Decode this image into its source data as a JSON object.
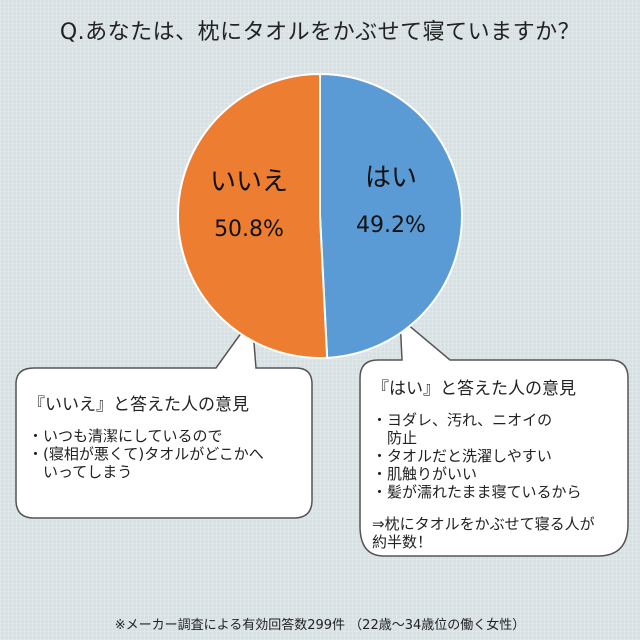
{
  "title": "Q.あなたは、枕にタオルをかぶせて寝ていますか？",
  "chart_data": {
    "type": "pie",
    "slices": [
      {
        "label": "はい",
        "value": 49.2,
        "value_label": "49.2%",
        "color": "#5b9bd5"
      },
      {
        "label": "いいえ",
        "value": 50.8,
        "value_label": "50.8%",
        "color": "#ed7d31"
      }
    ]
  },
  "left_box": {
    "heading": "『いいえ』と答えた人の意見",
    "items": [
      "・いつも清潔にしているので",
      "・(寝相が悪くて)タオルがどこかへ\n　いってしまう"
    ]
  },
  "right_box": {
    "heading": "『はい』と答えた人の意見",
    "items": [
      "・ヨダレ、汚れ、ニオイの\n　防止",
      "・タオルだと洗濯しやすい",
      "・肌触りがいい",
      "・髪が濡れたまま寝ているから"
    ],
    "conclusion": "⇒枕にタオルをかぶせて寝る人が\n約半数！"
  },
  "footnote": "※メーカー調査による有効回答数299件 （22歳～34歳位の働く女性）"
}
